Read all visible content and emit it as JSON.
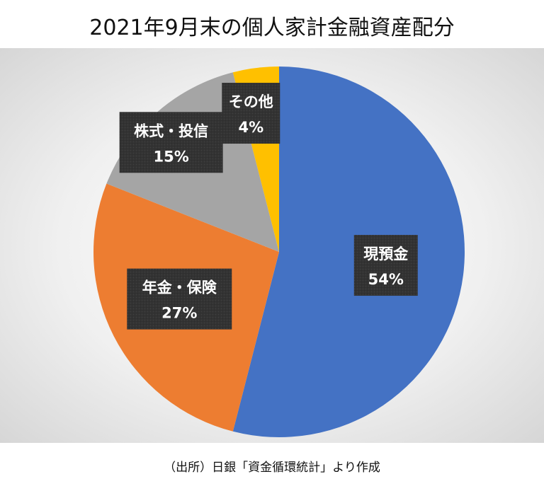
{
  "title": "2021年9月末の個人家計金融資産配分",
  "source": "（出所）日銀「資金循環統計」より作成",
  "chart_data": {
    "type": "pie",
    "title": "2021年9月末の個人家計金融資産配分",
    "start_angle_deg": 0,
    "direction": "clockwise",
    "slices": [
      {
        "label": "現預金",
        "value": 54,
        "value_label": "54%",
        "color": "#4472C4"
      },
      {
        "label": "年金・保険",
        "value": 27,
        "value_label": "27%",
        "color": "#ED7D31"
      },
      {
        "label": "株式・投信",
        "value": 15,
        "value_label": "15%",
        "color": "#A5A5A5"
      },
      {
        "label": "その他",
        "value": 4,
        "value_label": "4%",
        "color": "#FFC000"
      }
    ],
    "data_label_style": {
      "background": "#333333",
      "text_color": "#ffffff"
    },
    "legend": "none"
  }
}
